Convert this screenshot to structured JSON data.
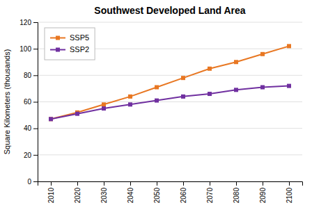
{
  "chart_data": {
    "type": "line",
    "title": "Southwest Developed Land Area",
    "ylabel": "Square Kilometers (thousands)",
    "x": [
      2010,
      2020,
      2030,
      2040,
      2050,
      2060,
      2070,
      2080,
      2090,
      2100
    ],
    "series": [
      {
        "name": "SSP5",
        "color": "#E87722",
        "marker": "square",
        "values": [
          47,
          52,
          58,
          64,
          71,
          78,
          85,
          90,
          96,
          102
        ]
      },
      {
        "name": "SSP2",
        "color": "#7030A0",
        "marker": "square",
        "values": [
          47,
          51,
          55,
          58,
          61,
          64,
          66,
          69,
          71,
          72
        ]
      }
    ],
    "xlim": [
      2005,
      2105
    ],
    "xticks": [
      2010,
      2020,
      2030,
      2040,
      2050,
      2060,
      2070,
      2080,
      2090,
      2100
    ],
    "ylim": [
      0,
      120
    ],
    "yticks": [
      0,
      20,
      40,
      60,
      80,
      100,
      120
    ],
    "grid": "y",
    "legend": "upper left"
  }
}
